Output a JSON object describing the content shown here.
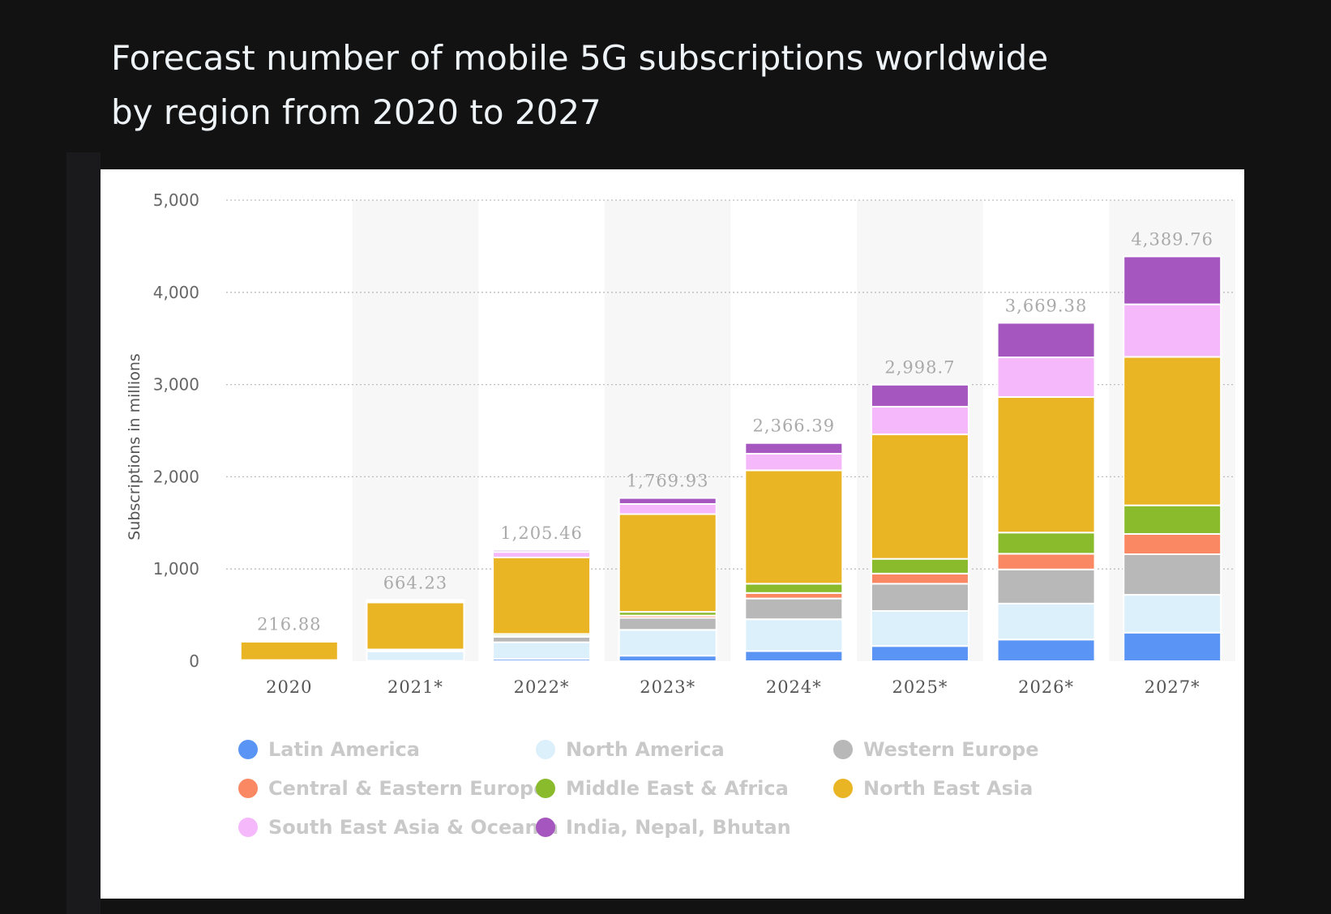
{
  "title": {
    "line1": "Forecast number of mobile 5G subscriptions worldwide",
    "line2": "by region from 2020 to 2027"
  },
  "chart_data": {
    "type": "bar",
    "stacked": true,
    "title": "Forecast number of mobile 5G subscriptions worldwide by region from 2020 to 2027",
    "xlabel": "",
    "ylabel": "Subscriptions in millions",
    "ylim": [
      0,
      5000
    ],
    "yticks": [
      0,
      1000,
      2000,
      3000,
      4000,
      5000
    ],
    "ytick_labels": [
      "0",
      "1,000",
      "2,000",
      "3,000",
      "4,000",
      "5,000"
    ],
    "grid": true,
    "legend_position": "bottom",
    "categories": [
      "2020",
      "2021*",
      "2022*",
      "2023*",
      "2024*",
      "2025*",
      "2026*",
      "2027*"
    ],
    "totals": [
      216.88,
      664.23,
      1205.46,
      1769.93,
      2366.39,
      2998.7,
      3669.38,
      4389.76
    ],
    "total_labels": [
      "216.88",
      "664.23",
      "1,205.46",
      "1,769.93",
      "2,366.39",
      "2,998.7",
      "3,669.38",
      "4,389.76"
    ],
    "series": [
      {
        "name": "Latin America",
        "color": "#5a95f5",
        "values": [
          2,
          5,
          25,
          60,
          110,
          165,
          235,
          310
        ]
      },
      {
        "name": "North America",
        "color": "#dcf0fc",
        "values": [
          5,
          100,
          180,
          280,
          345,
          380,
          390,
          410
        ]
      },
      {
        "name": "Western Europe",
        "color": "#b8b8b8",
        "values": [
          2,
          15,
          60,
          130,
          225,
          295,
          370,
          440
        ]
      },
      {
        "name": "Central & Eastern Europe",
        "color": "#f98863",
        "values": [
          1,
          2,
          10,
          25,
          60,
          110,
          170,
          220
        ]
      },
      {
        "name": "Middle East & Africa",
        "color": "#89bb2c",
        "values": [
          2,
          5,
          20,
          40,
          100,
          160,
          230,
          310
        ]
      },
      {
        "name": "North East Asia",
        "color": "#eab525",
        "values": [
          200,
          510,
          830,
          1060,
          1230,
          1350,
          1470,
          1610
        ]
      },
      {
        "name": "South East Asia & Oceania",
        "color": "#f5b8fb",
        "values": [
          3,
          15,
          60,
          110,
          180,
          300,
          430,
          570
        ]
      },
      {
        "name": "India, Nepal, Bhutan",
        "color": "#a656bf",
        "values": [
          1.88,
          12.23,
          20.46,
          64.93,
          116.39,
          238.7,
          374.38,
          519.76
        ]
      }
    ]
  },
  "legend": [
    {
      "label": "Latin America",
      "color": "#5a95f5"
    },
    {
      "label": "North America",
      "color": "#dcf0fc"
    },
    {
      "label": "Western Europe",
      "color": "#b8b8b8"
    },
    {
      "label": "Central & Eastern Europe",
      "color": "#f98863"
    },
    {
      "label": "Middle East & Africa",
      "color": "#89bb2c"
    },
    {
      "label": "North East Asia",
      "color": "#eab525"
    },
    {
      "label": "South East Asia & Oceania",
      "color": "#f5b8fb"
    },
    {
      "label": "India, Nepal, Bhutan",
      "color": "#a656bf"
    }
  ]
}
